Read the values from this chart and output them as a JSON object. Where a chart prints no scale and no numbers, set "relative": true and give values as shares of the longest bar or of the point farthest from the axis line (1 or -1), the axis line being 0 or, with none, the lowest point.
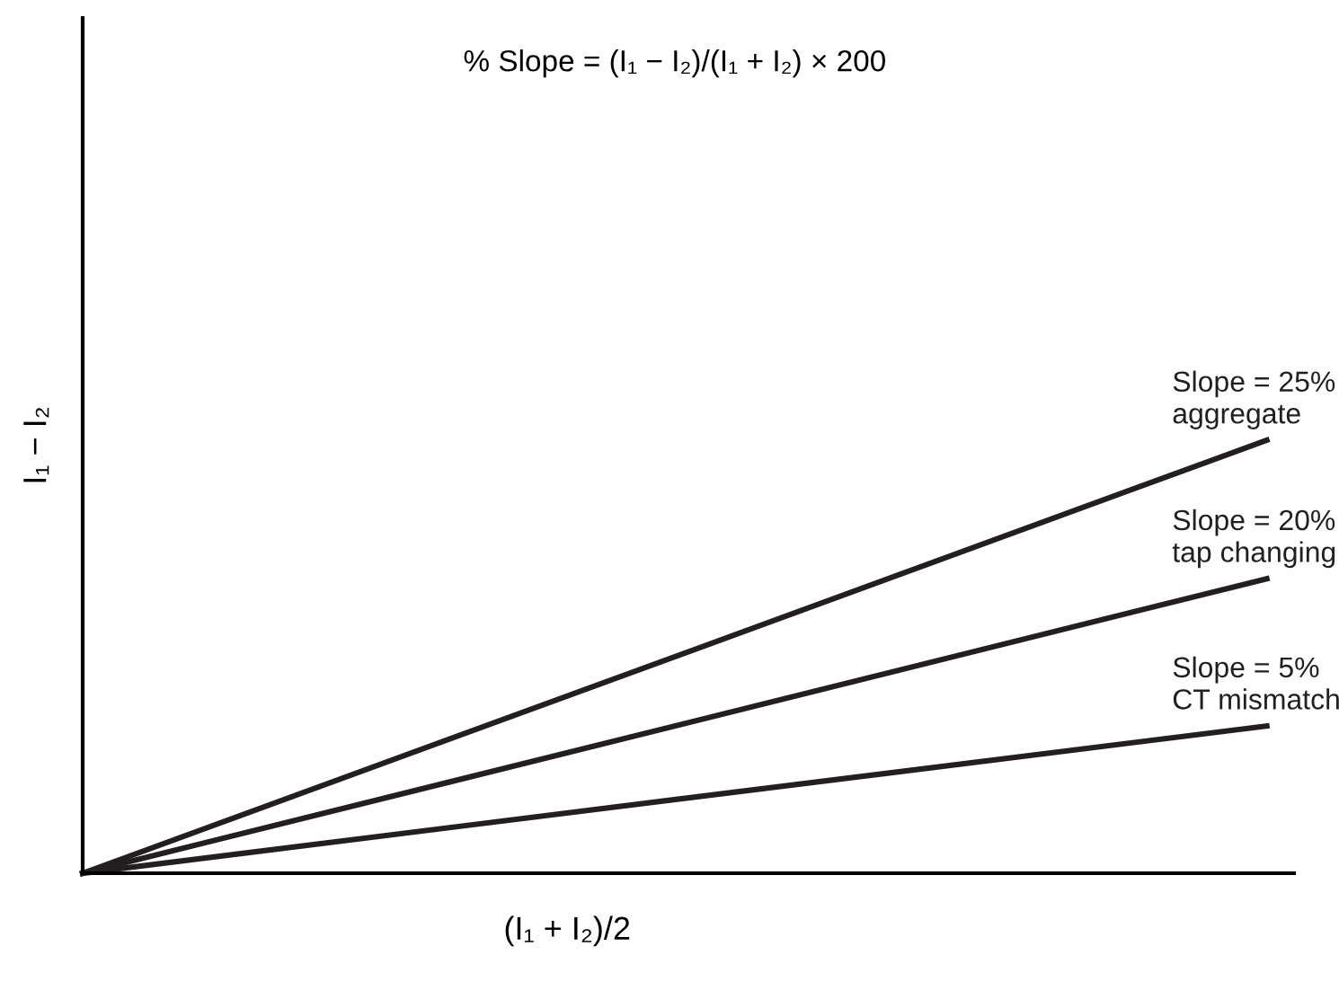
{
  "chart_data": {
    "type": "line",
    "relative": true,
    "title": "% Slope = (I₁ − I₂)/(I₁ + I₂) × 200",
    "xlabel": "(I₁ + I₂)/2",
    "ylabel": "I₁ − I₂",
    "categories": [
      null,
      null
    ],
    "legend": false,
    "marker": "none",
    "line_style": "solid",
    "series": [
      {
        "name": "Slope = 25%\naggregate",
        "color": "#231f20",
        "values": [
          0,
          1
        ]
      },
      {
        "name": "Slope = 20%\ntap changing",
        "color": "#231f20",
        "values": [
          0,
          0.68
        ]
      },
      {
        "name": "Slope = 5%\nCT mismatch",
        "color": "#231f20",
        "values": [
          0,
          0.34
        ]
      }
    ]
  }
}
